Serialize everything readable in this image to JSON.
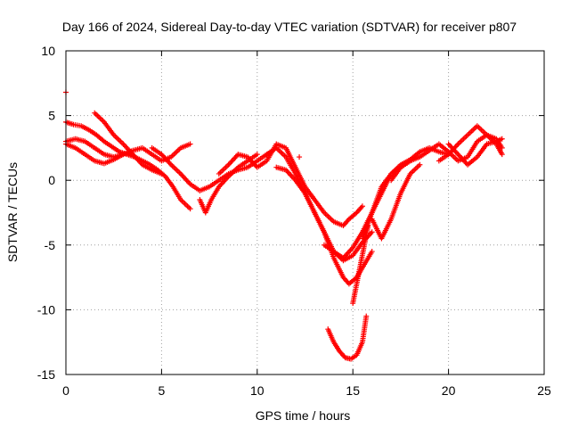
{
  "chart_data": {
    "type": "scatter",
    "title": "Day 166 of 2024, Sidereal Day-to-day VTEC variation (SDTVAR) for receiver p807",
    "xlabel": "GPS time / hours",
    "ylabel": "SDTVAR / TECUs",
    "xlim": [
      0,
      25
    ],
    "ylim": [
      -15,
      10
    ],
    "xticks": [
      0,
      5,
      10,
      15,
      20,
      25
    ],
    "yticks": [
      -15,
      -10,
      -5,
      0,
      5,
      10
    ],
    "xtick_labels": [
      "0",
      "5",
      "10",
      "15",
      "20",
      "25"
    ],
    "ytick_labels": [
      "-15",
      "-10",
      "-5",
      "0",
      "5",
      "10"
    ],
    "grid": true,
    "marker": "+",
    "color": "#ff0000",
    "series": [
      {
        "name": "trace-1",
        "x": [
          0.0,
          0.4,
          0.8,
          1.2,
          1.6,
          2.0,
          2.4,
          2.8,
          3.2,
          3.6,
          4.0,
          4.4,
          4.8,
          5.2,
          5.6,
          6.0,
          6.5
        ],
        "y": [
          4.5,
          4.3,
          4.2,
          3.9,
          3.5,
          3.0,
          2.6,
          2.2,
          2.0,
          1.8,
          1.5,
          1.2,
          0.8,
          0.3,
          -0.5,
          -1.5,
          -2.2
        ]
      },
      {
        "name": "trace-2",
        "x": [
          0.0,
          0.5,
          1.0,
          1.5,
          2.0,
          2.5,
          3.0,
          3.5,
          4.0,
          4.5,
          5.0,
          5.5,
          6.0,
          6.5
        ],
        "y": [
          3.0,
          3.2,
          3.0,
          2.5,
          2.0,
          1.8,
          2.0,
          2.3,
          2.5,
          2.0,
          1.5,
          1.8,
          2.5,
          2.8
        ]
      },
      {
        "name": "trace-3",
        "x": [
          1.5,
          2.0,
          2.5,
          3.0,
          3.5,
          4.0,
          4.5,
          5.0
        ],
        "y": [
          5.2,
          4.5,
          3.5,
          2.8,
          2.0,
          1.2,
          0.8,
          0.5
        ]
      },
      {
        "name": "trace-4",
        "x": [
          0.0,
          0.5,
          1.0,
          1.5,
          2.0,
          2.5,
          3.0
        ],
        "y": [
          2.8,
          2.5,
          2.0,
          1.5,
          1.3,
          1.6,
          2.0
        ]
      },
      {
        "name": "trace-5",
        "x": [
          4.5,
          5.0,
          5.5,
          6.0,
          6.5,
          7.0,
          7.5,
          8.0,
          8.5,
          9.0,
          9.5,
          10.0,
          10.5,
          11.0
        ],
        "y": [
          2.5,
          2.0,
          1.2,
          0.5,
          -0.3,
          -0.8,
          -0.5,
          0.0,
          0.5,
          0.8,
          1.0,
          1.5,
          2.0,
          2.5
        ]
      },
      {
        "name": "trace-6",
        "x": [
          7.0,
          7.3,
          7.6,
          8.0,
          8.5,
          9.0,
          9.5,
          10.0
        ],
        "y": [
          -1.5,
          -2.5,
          -1.5,
          -0.5,
          0.3,
          1.0,
          1.5,
          2.0
        ]
      },
      {
        "name": "trace-7",
        "x": [
          8.0,
          8.5,
          9.0,
          9.5,
          10.0,
          10.5,
          11.0,
          11.5,
          12.0,
          12.5,
          13.0,
          13.5,
          14.0,
          14.5,
          14.8,
          15.2,
          15.5
        ],
        "y": [
          0.5,
          1.2,
          2.0,
          1.8,
          1.0,
          1.5,
          2.8,
          2.5,
          1.0,
          -0.5,
          -1.5,
          -2.5,
          -3.2,
          -3.5,
          -3.0,
          -2.5,
          -2.0
        ]
      },
      {
        "name": "trace-8",
        "x": [
          10.5,
          11.0,
          11.5,
          12.0,
          12.5,
          13.0,
          13.5,
          14.0,
          14.5,
          15.0,
          15.5,
          16.0
        ],
        "y": [
          2.0,
          2.5,
          1.8,
          0.5,
          -1.0,
          -2.5,
          -4.0,
          -5.5,
          -6.2,
          -5.8,
          -4.8,
          -4.0
        ]
      },
      {
        "name": "trace-9",
        "x": [
          11.0,
          11.5,
          12.0,
          12.5,
          13.0,
          13.5,
          14.0,
          14.5,
          14.8,
          15.2,
          15.6,
          16.0
        ],
        "y": [
          1.0,
          0.8,
          0.0,
          -1.0,
          -2.5,
          -4.0,
          -6.0,
          -7.5,
          -8.0,
          -7.5,
          -6.5,
          -5.5
        ]
      },
      {
        "name": "trace-10",
        "x": [
          13.5,
          14.0,
          14.5,
          15.0,
          15.5,
          16.0,
          16.5,
          17.0,
          17.5,
          18.0
        ],
        "y": [
          -5.0,
          -5.5,
          -6.0,
          -5.2,
          -4.0,
          -2.5,
          -1.0,
          0.5,
          1.0,
          1.5
        ]
      },
      {
        "name": "trace-11",
        "x": [
          13.7,
          14.0,
          14.3,
          14.6,
          14.9,
          15.2,
          15.5,
          15.7
        ],
        "y": [
          -11.5,
          -12.5,
          -13.2,
          -13.7,
          -13.8,
          -13.5,
          -12.5,
          -10.5
        ]
      },
      {
        "name": "trace-12",
        "x": [
          15.0,
          15.2,
          15.4,
          15.6,
          15.8
        ],
        "y": [
          -9.5,
          -8.0,
          -6.5,
          -5.0,
          -3.5
        ]
      },
      {
        "name": "trace-13",
        "x": [
          15.5,
          16.0,
          16.5,
          17.0,
          17.5,
          18.0,
          18.5,
          19.0,
          19.5,
          20.0
        ],
        "y": [
          -4.5,
          -2.5,
          -0.5,
          0.5,
          1.2,
          1.6,
          2.2,
          2.5,
          2.2,
          2.0
        ]
      },
      {
        "name": "trace-14",
        "x": [
          16.0,
          16.5,
          17.0,
          17.5,
          18.0,
          18.5
        ],
        "y": [
          -3.0,
          -4.5,
          -3.0,
          -1.0,
          0.5,
          1.2
        ]
      },
      {
        "name": "trace-15",
        "x": [
          17.0,
          17.5,
          18.0,
          18.5,
          19.0,
          19.5,
          20.0,
          20.5,
          21.0,
          21.5,
          22.0,
          22.5,
          22.8
        ],
        "y": [
          0.0,
          1.0,
          1.5,
          1.8,
          2.3,
          2.8,
          2.2,
          1.5,
          1.8,
          3.0,
          3.5,
          3.2,
          2.5
        ]
      },
      {
        "name": "trace-16",
        "x": [
          19.5,
          20.0,
          20.5,
          21.0,
          21.5,
          22.0,
          22.5,
          22.8
        ],
        "y": [
          1.5,
          2.0,
          2.8,
          3.5,
          4.2,
          3.5,
          2.8,
          2.0
        ]
      },
      {
        "name": "trace-17",
        "x": [
          20.0,
          20.5,
          21.0,
          21.5,
          22.0,
          22.5,
          22.8
        ],
        "y": [
          2.8,
          2.0,
          1.2,
          1.8,
          2.8,
          3.0,
          3.2
        ]
      },
      {
        "name": "outlier",
        "x": [
          0.0,
          12.2
        ],
        "y": [
          6.8,
          1.8
        ]
      }
    ]
  }
}
